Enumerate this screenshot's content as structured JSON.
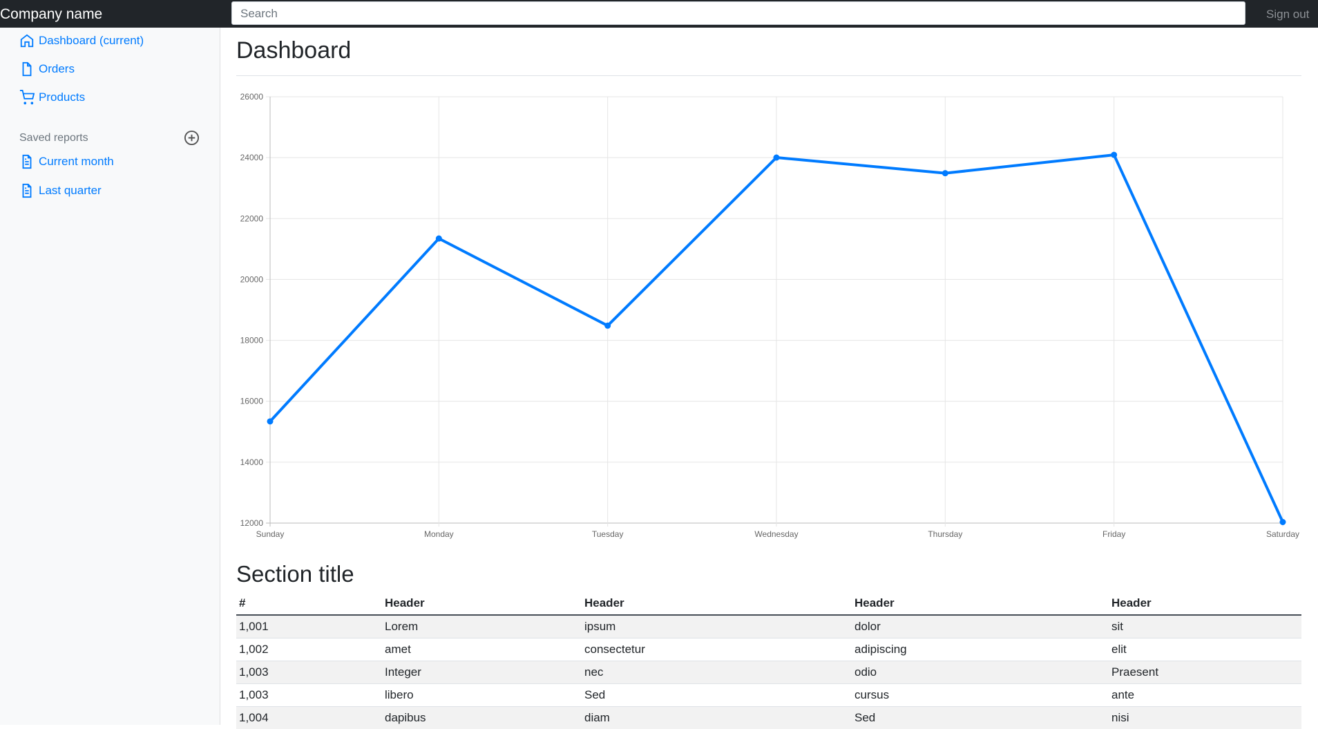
{
  "header": {
    "brand": "Company name",
    "search": "Search",
    "sign_out": "Sign out"
  },
  "sidebar": {
    "nav": [
      "Dashboard (current)",
      "Orders",
      "Products"
    ],
    "saved_reports_title": "Saved reports",
    "reports": [
      "Current month",
      "Last quarter"
    ]
  },
  "main": {
    "title": "Dashboard",
    "section_title": "Section title"
  },
  "chart_data": {
    "type": "line",
    "categories": [
      "Sunday",
      "Monday",
      "Tuesday",
      "Wednesday",
      "Thursday",
      "Friday",
      "Saturday"
    ],
    "values": [
      15339,
      21345,
      18483,
      24003,
      23489,
      24092,
      12034
    ],
    "color": "#007bff",
    "ylim": [
      12000,
      26000
    ],
    "yticks": [
      12000,
      14000,
      16000,
      18000,
      20000,
      22000,
      24000,
      26000
    ],
    "grid": true
  },
  "table": {
    "headers": [
      "#",
      "Header",
      "Header",
      "Header",
      "Header"
    ],
    "rows": [
      [
        "1,001",
        "Lorem",
        "ipsum",
        "dolor",
        "sit"
      ],
      [
        "1,002",
        "amet",
        "consectetur",
        "adipiscing",
        "elit"
      ],
      [
        "1,003",
        "Integer",
        "nec",
        "odio",
        "Praesent"
      ],
      [
        "1,003",
        "libero",
        "Sed",
        "cursus",
        "ante"
      ],
      [
        "1,004",
        "dapibus",
        "diam",
        "Sed",
        "nisi"
      ]
    ]
  }
}
